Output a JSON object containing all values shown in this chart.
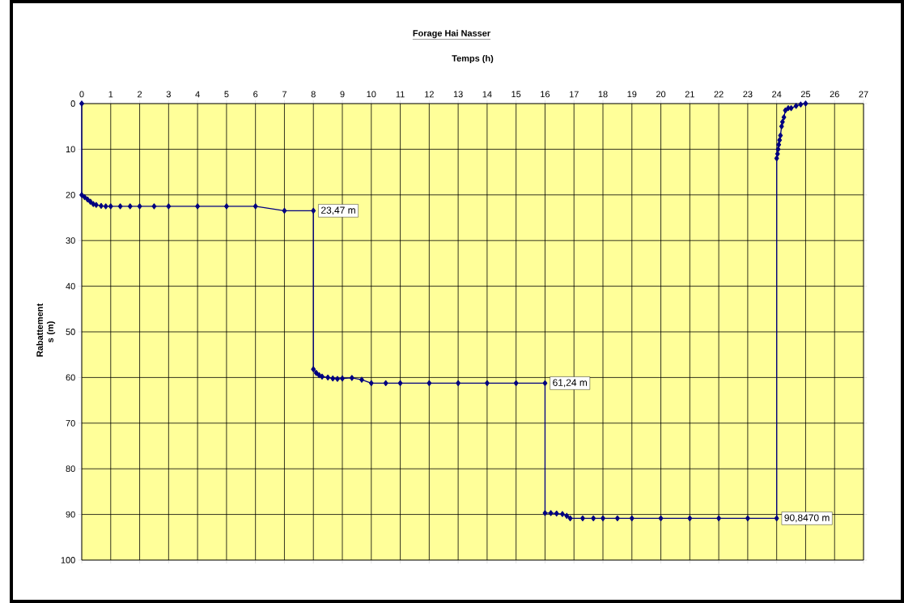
{
  "chart_data": {
    "type": "line",
    "title": "Forage Hai Nasser",
    "xlabel": "Temps (h)",
    "ylabel": "Rabattement s (m)",
    "x": [
      0,
      0,
      0.1,
      0.2,
      0.3,
      0.4,
      0.5,
      0.67,
      0.83,
      1,
      1.33,
      1.67,
      2,
      2.5,
      3,
      4,
      5,
      6,
      7,
      8,
      8,
      8.1,
      8.2,
      8.3,
      8.5,
      8.67,
      8.83,
      9,
      9.33,
      9.67,
      10,
      10.5,
      11,
      12,
      13,
      14,
      15,
      16,
      16,
      16.2,
      16.4,
      16.6,
      16.75,
      16.87,
      17.3,
      17.67,
      18,
      18.5,
      19,
      20,
      21,
      22,
      23,
      24,
      24,
      24.03,
      24.05,
      24.07,
      24.1,
      24.13,
      24.17,
      24.2,
      24.25,
      24.3,
      24.4,
      24.5,
      24.67,
      24.83,
      25
    ],
    "series": [
      {
        "color": "#000080",
        "values": [
          0,
          20,
          20.5,
          21,
          21.5,
          22,
          22.2,
          22.4,
          22.5,
          22.5,
          22.5,
          22.5,
          22.5,
          22.5,
          22.5,
          22.5,
          22.5,
          22.5,
          23.47,
          23.47,
          58.2,
          59,
          59.5,
          59.8,
          60,
          60.2,
          60.3,
          60.2,
          60.1,
          60.5,
          61.24,
          61.24,
          61.24,
          61.24,
          61.24,
          61.24,
          61.24,
          61.24,
          89.7,
          89.7,
          89.8,
          89.9,
          90.3,
          90.85,
          90.85,
          90.85,
          90.85,
          90.85,
          90.85,
          90.85,
          90.85,
          90.85,
          90.85,
          90.847,
          12,
          11,
          10,
          9,
          8,
          7,
          5,
          4,
          3,
          1.5,
          1,
          1,
          0.5,
          0.2,
          0
        ]
      }
    ],
    "xlim": [
      0,
      27
    ],
    "xticks": [
      0,
      1,
      2,
      3,
      4,
      5,
      6,
      7,
      8,
      9,
      10,
      11,
      12,
      13,
      14,
      15,
      16,
      17,
      18,
      19,
      20,
      21,
      22,
      23,
      24,
      25,
      26,
      27
    ],
    "ylim": [
      100,
      0
    ],
    "yticks": [
      0,
      10,
      20,
      30,
      40,
      50,
      60,
      70,
      80,
      90,
      100
    ],
    "grid": true,
    "marker": "diamond",
    "line_style": "solid",
    "annotations": [
      {
        "text": "23,47 m",
        "x": 8,
        "y": 23.47
      },
      {
        "text": "61,24 m",
        "x": 16,
        "y": 61.24
      },
      {
        "text": "90,8470 m",
        "x": 24,
        "y": 90.847
      }
    ]
  }
}
